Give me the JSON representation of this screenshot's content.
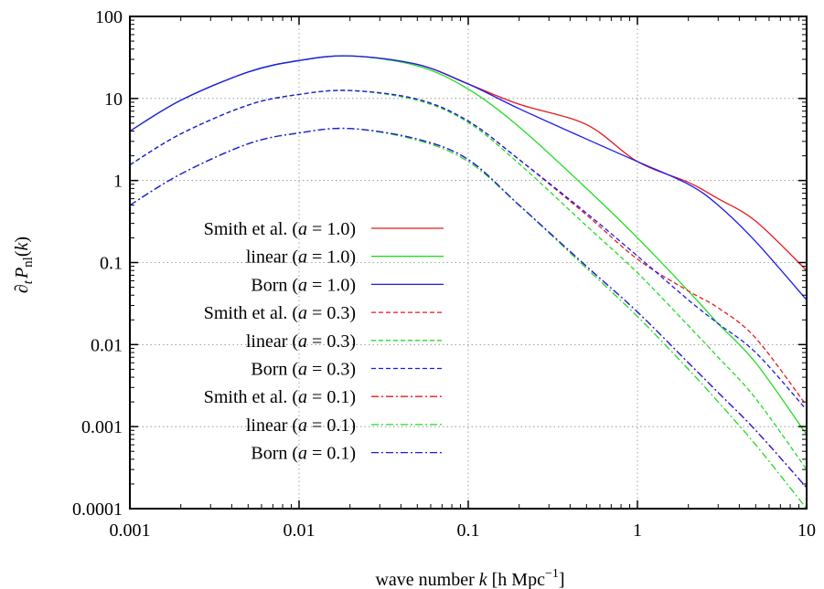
{
  "chart_data": {
    "type": "line",
    "title": "",
    "xlabel": {
      "pre": "wave number ",
      "var": "k",
      "post": " [h Mpc",
      "sup": "−1",
      "close": "]"
    },
    "ylabel": {
      "d": "∂",
      "t": "t",
      "P": "P",
      "nl": "nl",
      "arg": "(",
      "k": "k",
      "close": ")"
    },
    "xscale": "log",
    "yscale": "log",
    "xlim": [
      0.001,
      10
    ],
    "ylim": [
      0.0001,
      100
    ],
    "x_ticks": [
      "0.001",
      "0.01",
      "0.1",
      "1",
      "10"
    ],
    "y_ticks": [
      "0.0001",
      "0.001",
      "0.01",
      "0.1",
      "1",
      "10",
      "100"
    ],
    "grid": true,
    "legend_position": "left",
    "series": [
      {
        "name_main": "Smith et al.",
        "a": "1.0",
        "color": "#e41a1c",
        "style": "solid",
        "x": [
          0.001,
          0.002,
          0.005,
          0.01,
          0.02,
          0.05,
          0.1,
          0.2,
          0.5,
          1,
          2,
          3,
          5,
          10
        ],
        "y": [
          4.0,
          9.5,
          21,
          29,
          33,
          26,
          15,
          8.5,
          4.8,
          1.7,
          0.95,
          0.6,
          0.32,
          0.08
        ]
      },
      {
        "name_main": "linear",
        "a": "1.0",
        "color": "#22dd22",
        "style": "solid",
        "x": [
          0.001,
          0.002,
          0.005,
          0.01,
          0.02,
          0.05,
          0.1,
          0.2,
          0.5,
          1,
          2,
          3,
          5,
          10
        ],
        "y": [
          4.0,
          9.5,
          21,
          29,
          33,
          25,
          13,
          4.5,
          0.8,
          0.2,
          0.045,
          0.018,
          0.006,
          0.0008
        ]
      },
      {
        "name_main": "Born",
        "a": "1.0",
        "color": "#1a1aee",
        "style": "solid",
        "x": [
          0.001,
          0.002,
          0.005,
          0.01,
          0.02,
          0.05,
          0.1,
          0.2,
          0.5,
          1,
          2,
          3,
          5,
          10
        ],
        "y": [
          4.0,
          9.5,
          21,
          29,
          33,
          26,
          15,
          7.5,
          3.2,
          1.7,
          0.9,
          0.5,
          0.18,
          0.035
        ]
      },
      {
        "name_main": "Smith et al.",
        "a": "0.3",
        "color": "#e41a1c",
        "style": "dashed",
        "x": [
          0.001,
          0.002,
          0.005,
          0.01,
          0.02,
          0.05,
          0.1,
          0.2,
          0.5,
          1,
          2,
          3,
          5,
          10
        ],
        "y": [
          1.55,
          3.7,
          8.3,
          11.2,
          12.5,
          9.8,
          5.3,
          1.8,
          0.38,
          0.11,
          0.045,
          0.028,
          0.012,
          0.0018
        ]
      },
      {
        "name_main": "linear",
        "a": "0.3",
        "color": "#22dd22",
        "style": "dashed",
        "x": [
          0.001,
          0.002,
          0.005,
          0.01,
          0.02,
          0.05,
          0.1,
          0.2,
          0.5,
          1,
          2,
          3,
          5,
          10
        ],
        "y": [
          1.55,
          3.7,
          8.3,
          11.2,
          12.5,
          9.5,
          5.1,
          1.6,
          0.28,
          0.075,
          0.017,
          0.007,
          0.0022,
          0.0003
        ]
      },
      {
        "name_main": "Born",
        "a": "0.3",
        "color": "#1a1aee",
        "style": "dashed",
        "x": [
          0.001,
          0.002,
          0.005,
          0.01,
          0.02,
          0.05,
          0.1,
          0.2,
          0.5,
          1,
          2,
          3,
          5,
          10
        ],
        "y": [
          1.55,
          3.7,
          8.3,
          11.2,
          12.5,
          9.8,
          5.3,
          1.8,
          0.4,
          0.12,
          0.035,
          0.018,
          0.008,
          0.0016
        ]
      },
      {
        "name_main": "Smith et al.",
        "a": "0.1",
        "color": "#e41a1c",
        "style": "dashdot",
        "x": [
          0.001,
          0.002,
          0.005,
          0.01,
          0.02,
          0.05,
          0.1,
          0.2,
          0.5,
          1,
          2,
          3,
          5,
          10
        ],
        "y": [
          0.5,
          1.2,
          2.8,
          3.8,
          4.3,
          3.2,
          1.8,
          0.5,
          0.09,
          0.025,
          0.006,
          0.0026,
          0.0009,
          0.00018
        ]
      },
      {
        "name_main": "linear",
        "a": "0.1",
        "color": "#22dd22",
        "style": "dashdot",
        "x": [
          0.001,
          0.002,
          0.005,
          0.01,
          0.02,
          0.05,
          0.1,
          0.2,
          0.5,
          1,
          2,
          3,
          5,
          10
        ],
        "y": [
          0.5,
          1.2,
          2.8,
          3.8,
          4.3,
          3.1,
          1.7,
          0.5,
          0.085,
          0.022,
          0.005,
          0.002,
          0.0006,
          0.0001
        ]
      },
      {
        "name_main": "Born",
        "a": "0.1",
        "color": "#1a1aee",
        "style": "dashdot",
        "x": [
          0.001,
          0.002,
          0.005,
          0.01,
          0.02,
          0.05,
          0.1,
          0.2,
          0.5,
          1,
          2,
          3,
          5,
          10
        ],
        "y": [
          0.5,
          1.2,
          2.8,
          3.8,
          4.3,
          3.2,
          1.8,
          0.5,
          0.09,
          0.025,
          0.006,
          0.0026,
          0.0009,
          0.00018
        ]
      }
    ]
  }
}
